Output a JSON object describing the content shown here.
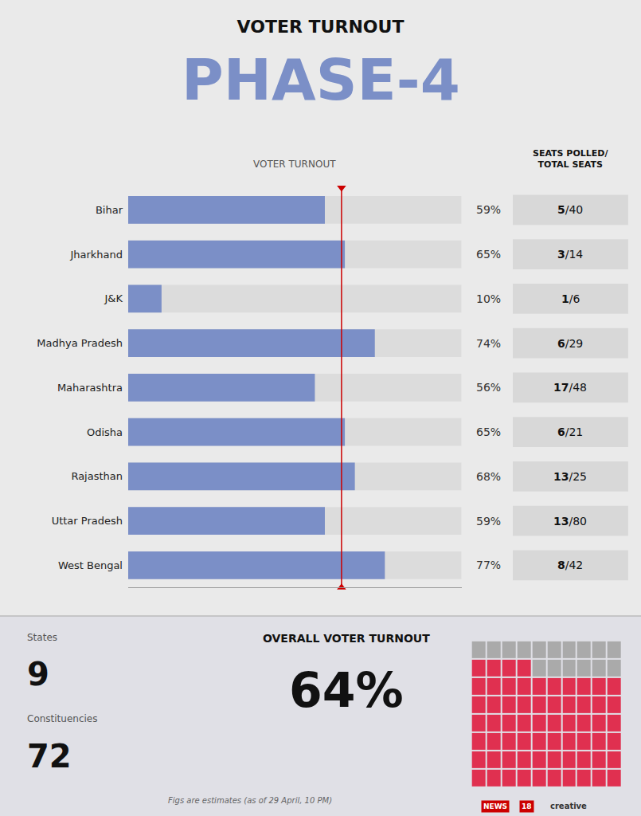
{
  "chart_data": {
    "type": "bar",
    "orientation": "horizontal",
    "title": "VOTER TURNOUT",
    "subtitle": "PHASE-4",
    "subtitle_color": "#7B8FC7",
    "categories": [
      "Bihar",
      "Jharkhand",
      "J&K",
      "Madhya Pradesh",
      "Maharashtra",
      "Odisha",
      "Rajasthan",
      "Uttar Pradesh",
      "West Bengal"
    ],
    "values": [
      59,
      65,
      10,
      74,
      56,
      65,
      68,
      59,
      77
    ],
    "value_labels": [
      "59%",
      "65%",
      "10%",
      "74%",
      "56%",
      "65%",
      "68%",
      "59%",
      "77%"
    ],
    "data_labels": true,
    "color": "#7B8FC7",
    "track_color": "#DCDCDC",
    "background": "#EAEAEA",
    "xlim": [
      0,
      100
    ],
    "tick_labels": "y",
    "grid": false,
    "column_labels": [
      "VOTER TURNOUT",
      "SEATS POLLED/\nTOTAL SEATS"
    ],
    "seats_labels": [
      "5/40",
      "3/14",
      "1/6",
      "6/29",
      "17/48",
      "6/21",
      "13/25",
      "13/80",
      "8/42"
    ],
    "seats_panel_color": "#D8D8D8",
    "ref_line": {
      "value": 64,
      "color": "#CC0000"
    },
    "stats": [
      {
        "label": "States",
        "value": 9
      },
      {
        "label": "Constituencies",
        "value": 72
      }
    ],
    "overall": {
      "label": "OVERALL VOTER TURNOUT",
      "value": 64,
      "value_label": "64%"
    },
    "panel_color": "#E0E0E6",
    "divider_color": "#BBBBBB",
    "waffle": {
      "filled": 64,
      "total": 80,
      "filled_color": "#E03050",
      "empty_color": "#AAAAAA"
    },
    "footer": "Figs are estimates (as of 29 April, 10 PM)",
    "branding": {
      "texts": [
        "NEWS",
        "18",
        "creative"
      ],
      "color": "#CC0000"
    }
  }
}
